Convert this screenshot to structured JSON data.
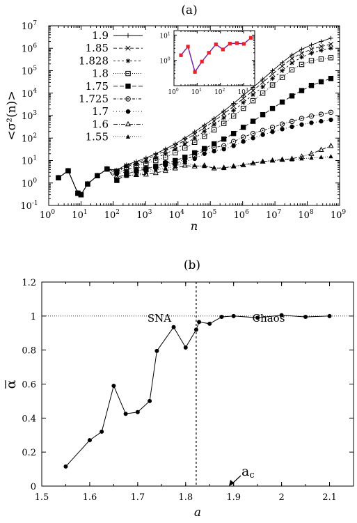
{
  "chart_data": [
    {
      "id": "a",
      "panel_label": "(a)",
      "type": "line",
      "xscale": "log",
      "yscale": "log",
      "xlabel": "n",
      "ylabel": "<σ²(n)>",
      "xlim": [
        1,
        1000000000
      ],
      "ylim": [
        0.1,
        10000000
      ],
      "xticks": [
        {
          "v": 1,
          "label": "10",
          "exp": "0"
        },
        {
          "v": 10,
          "label": "10",
          "exp": "1"
        },
        {
          "v": 100,
          "label": "10",
          "exp": "2"
        },
        {
          "v": 1000,
          "label": "10",
          "exp": "3"
        },
        {
          "v": 10000,
          "label": "10",
          "exp": "4"
        },
        {
          "v": 100000,
          "label": "10",
          "exp": "5"
        },
        {
          "v": 1000000,
          "label": "10",
          "exp": "6"
        },
        {
          "v": 10000000,
          "label": "10",
          "exp": "7"
        },
        {
          "v": 100000000,
          "label": "10",
          "exp": "8"
        },
        {
          "v": 1000000000,
          "label": "10",
          "exp": "9"
        }
      ],
      "yticks": [
        {
          "v": 0.1,
          "label": "10",
          "exp": "-1"
        },
        {
          "v": 1,
          "label": "10",
          "exp": "0"
        },
        {
          "v": 10,
          "label": "10",
          "exp": "1"
        },
        {
          "v": 100,
          "label": "10",
          "exp": "2"
        },
        {
          "v": 1000,
          "label": "10",
          "exp": "3"
        },
        {
          "v": 10000,
          "label": "10",
          "exp": "4"
        },
        {
          "v": 100000,
          "label": "10",
          "exp": "5"
        },
        {
          "v": 1000000,
          "label": "10",
          "exp": "6"
        },
        {
          "v": 10000000,
          "label": "10",
          "exp": "7"
        }
      ],
      "legend_position": "top-left",
      "x": [
        2,
        4,
        8,
        10,
        16,
        32,
        64,
        128,
        256,
        512,
        1024,
        2048,
        4096,
        8192,
        16384,
        32768,
        65536,
        131072,
        262144,
        524288,
        1048576,
        2097152,
        4194304,
        8388608,
        16777216,
        33554432,
        67108864,
        134217728,
        268435456,
        536870912
      ],
      "series": [
        {
          "name": "1.9",
          "marker": "plus",
          "dash": "",
          "values": [
            1.7,
            3.5,
            0.35,
            0.3,
            0.9,
            2.1,
            4.2,
            3.8,
            6.5,
            9,
            13,
            20,
            33,
            55,
            100,
            190,
            380,
            750,
            1600,
            3500,
            8000,
            18000,
            42000,
            100000,
            230000,
            500000,
            900000,
            1400000,
            2000000,
            2800000
          ]
        },
        {
          "name": "1.85",
          "marker": "x",
          "dash": "5,3",
          "values": [
            1.7,
            3.5,
            0.35,
            0.3,
            0.9,
            2.1,
            4.2,
            3.6,
            6,
            8,
            11,
            17,
            27,
            45,
            80,
            150,
            290,
            570,
            1200,
            2600,
            5800,
            13000,
            30000,
            70000,
            160000,
            350000,
            600000,
            900000,
            1200000,
            1500000
          ]
        },
        {
          "name": "1.828",
          "marker": "asterisk",
          "dash": "3,3",
          "values": [
            1.7,
            3.5,
            0.35,
            0.3,
            0.9,
            2.1,
            4.2,
            3.4,
            5.5,
            7,
            9,
            13,
            20,
            32,
            55,
            100,
            200,
            400,
            800,
            1700,
            3800,
            8500,
            19000,
            45000,
            100000,
            220000,
            400000,
            600000,
            800000,
            1000000
          ]
        },
        {
          "name": "1.8",
          "marker": "square-open",
          "dash": "1,2",
          "values": [
            1.7,
            3.5,
            0.35,
            0.3,
            0.9,
            2.1,
            4.2,
            3.2,
            5,
            6,
            7.5,
            10,
            14,
            22,
            36,
            65,
            120,
            230,
            450,
            950,
            2100,
            4600,
            10000,
            23000,
            50000,
            110000,
            190000,
            280000,
            330000,
            380000
          ]
        },
        {
          "name": "1.75",
          "marker": "square-filled",
          "dash": "6,3",
          "values": [
            1.7,
            3.5,
            0.35,
            0.3,
            0.9,
            2.1,
            4.2,
            1.3,
            2.5,
            3.4,
            4.2,
            5.5,
            7.5,
            10,
            14,
            22,
            34,
            55,
            90,
            160,
            300,
            560,
            1100,
            2100,
            4000,
            7500,
            13000,
            22000,
            32000,
            45000
          ]
        },
        {
          "name": "1.725",
          "marker": "circle-dot",
          "dash": "4,2,1,2",
          "values": [
            1.7,
            3.5,
            0.35,
            0.3,
            0.9,
            2.1,
            4.2,
            2.8,
            4,
            5,
            4.5,
            5.5,
            8,
            7,
            12,
            15,
            30,
            38,
            45,
            70,
            110,
            160,
            220,
            300,
            420,
            550,
            750,
            950,
            1150,
            1400
          ]
        },
        {
          "name": "1.7",
          "marker": "circle-filled",
          "dash": "1,3",
          "values": [
            1.7,
            3.5,
            0.35,
            0.3,
            0.9,
            2.1,
            4.2,
            2.5,
            3.2,
            3.8,
            3.5,
            4.5,
            6,
            6.5,
            9,
            12,
            20,
            26,
            32,
            45,
            70,
            100,
            140,
            190,
            250,
            320,
            400,
            480,
            560,
            650
          ]
        },
        {
          "name": "1.6",
          "marker": "triangle-open",
          "dash": "6,2,1,2",
          "values": [
            1.7,
            3.5,
            0.35,
            0.3,
            0.9,
            2.1,
            4.2,
            1.9,
            2.2,
            2.3,
            2.4,
            2.8,
            3.5,
            4.5,
            6,
            5.5,
            6,
            4.5,
            4.8,
            5.5,
            6.2,
            7.5,
            9,
            10,
            11,
            12,
            15,
            20,
            30,
            45
          ]
        },
        {
          "name": "1.55",
          "marker": "triangle-filled",
          "dash": "1,2",
          "values": [
            1.7,
            3.5,
            0.35,
            0.3,
            0.9,
            2.1,
            4.2,
            1.5,
            2,
            2.4,
            3,
            3.8,
            4.5,
            5.5,
            8,
            6,
            5.5,
            4.8,
            4.5,
            5.5,
            6.5,
            8,
            9,
            10,
            10.5,
            11,
            12,
            13,
            14,
            15
          ]
        }
      ],
      "inset": {
        "type": "line",
        "xscale": "log",
        "yscale": "log",
        "xlim": [
          1,
          3000
        ],
        "ylim": [
          0.1,
          15
        ],
        "xticks": [
          {
            "v": 1,
            "label": "10",
            "exp": "0"
          },
          {
            "v": 10,
            "label": "10",
            "exp": "1"
          },
          {
            "v": 100,
            "label": "10",
            "exp": "2"
          },
          {
            "v": 1000,
            "label": "10",
            "exp": "3"
          }
        ],
        "yticks": [
          {
            "v": 1,
            "label": "10",
            "exp": "0"
          },
          {
            "v": 10,
            "label": "10",
            "exp": "1"
          }
        ],
        "line_color": "#7a22a8",
        "marker_color": "#e3242b",
        "x": [
          2,
          4,
          8,
          16,
          32,
          64,
          128,
          256,
          512,
          1024,
          2048
        ],
        "values": [
          1.6,
          3.5,
          0.35,
          0.9,
          2.0,
          4.3,
          2.7,
          4.6,
          4.8,
          4.5,
          7.8
        ]
      }
    },
    {
      "id": "b",
      "panel_label": "(b)",
      "type": "line",
      "xlabel": "a",
      "ylabel": "α",
      "ylabel_overbar": true,
      "xlim": [
        1.5,
        2.15
      ],
      "ylim": [
        0,
        1.2
      ],
      "xticks": [
        {
          "v": 1.5,
          "label": "1.5"
        },
        {
          "v": 1.6,
          "label": "1.6"
        },
        {
          "v": 1.7,
          "label": "1.7"
        },
        {
          "v": 1.8,
          "label": "1.8"
        },
        {
          "v": 1.9,
          "label": "1.9"
        },
        {
          "v": 2.0,
          "label": "2"
        },
        {
          "v": 2.1,
          "label": "2.1"
        }
      ],
      "yticks": [
        {
          "v": 0,
          "label": "0"
        },
        {
          "v": 0.2,
          "label": "0.2"
        },
        {
          "v": 0.4,
          "label": "0.4"
        },
        {
          "v": 0.6,
          "label": "0.6"
        },
        {
          "v": 0.8,
          "label": "0.8"
        },
        {
          "v": 1.0,
          "label": "1"
        },
        {
          "v": 1.2,
          "label": "1.2"
        }
      ],
      "x": [
        1.55,
        1.6,
        1.625,
        1.65,
        1.675,
        1.7,
        1.725,
        1.74,
        1.775,
        1.8,
        1.822,
        1.828,
        1.85,
        1.875,
        1.9,
        1.95,
        2.0,
        2.05,
        2.1
      ],
      "values": [
        0.115,
        0.27,
        0.32,
        0.59,
        0.425,
        0.435,
        0.5,
        0.795,
        0.935,
        0.815,
        0.92,
        0.965,
        0.955,
        0.995,
        1.0,
        0.99,
        1.005,
        0.995,
        1.0
      ],
      "reference_line": {
        "y": 1.0,
        "style": "dotted"
      },
      "critical_line": {
        "x": 1.822,
        "style": "dashed"
      },
      "annotations": {
        "left_region": "SNA",
        "right_region": "Chaos",
        "arrow_label": "a",
        "arrow_label_sub": "c"
      }
    }
  ]
}
